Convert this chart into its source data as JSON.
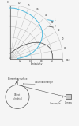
{
  "title": "",
  "polar_grid_angles_deg": [
    0,
    10,
    20,
    30,
    40,
    50,
    60,
    70,
    80,
    90
  ],
  "polar_grid_radii": [
    0.2,
    0.4,
    0.6,
    0.8,
    1.0
  ],
  "emissivity_labels": [
    "0.2",
    "0.4",
    "0.6",
    "0.8",
    "1"
  ],
  "angle_labels": [
    "10",
    "20",
    "30",
    "40",
    "50",
    "60",
    "70",
    "80",
    "90"
  ],
  "curve1_color": "#55bbdd",
  "curve2_color": "#444444",
  "grid_color": "#aaaaaa",
  "bg_color": "#f5f5f5",
  "curve1_angles": [
    0,
    5,
    10,
    15,
    20,
    25,
    30,
    35,
    40,
    45,
    50,
    55,
    60,
    65,
    70,
    75,
    80,
    85,
    90
  ],
  "curve1_values": [
    0.95,
    0.95,
    0.94,
    0.93,
    0.92,
    0.91,
    0.9,
    0.88,
    0.86,
    0.83,
    0.8,
    0.75,
    0.69,
    0.62,
    0.54,
    0.45,
    0.35,
    0.24,
    0.14
  ],
  "curve2_angles": [
    0,
    5,
    10,
    15,
    20,
    25,
    30,
    35,
    40,
    45,
    50,
    55,
    60,
    65,
    70,
    75,
    80,
    85,
    90
  ],
  "curve2_values": [
    0.1,
    0.1,
    0.11,
    0.12,
    0.14,
    0.16,
    0.19,
    0.23,
    0.28,
    0.35,
    0.43,
    0.52,
    0.61,
    0.68,
    0.74,
    0.78,
    0.8,
    0.81,
    0.81
  ],
  "xlabel": "Emissivity",
  "fig_width": 1.0,
  "fig_height": 1.58,
  "dpi": 100
}
